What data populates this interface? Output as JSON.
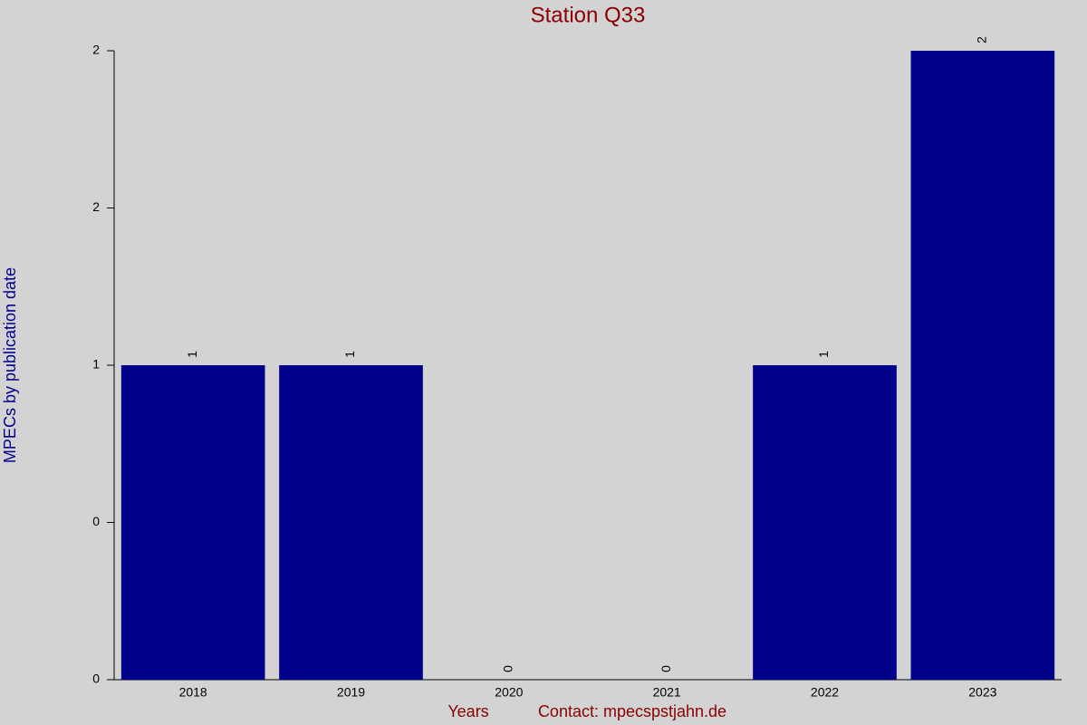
{
  "chart_data": {
    "type": "bar",
    "title": "Station Q33",
    "y_label": "MPECs by publication date",
    "x_label": "Years",
    "footer": "Contact: mpecspstjahn.de",
    "categories": [
      "2018",
      "2019",
      "2020",
      "2021",
      "2022",
      "2023"
    ],
    "values": [
      1,
      1,
      0,
      0,
      1,
      2
    ],
    "color": "#00008b",
    "ylim": [
      0,
      2
    ],
    "yticks": [
      0,
      {
        "value": 0.5,
        "label": "0"
      },
      1,
      {
        "value": 1.5,
        "label": "2"
      },
      2
    ]
  }
}
